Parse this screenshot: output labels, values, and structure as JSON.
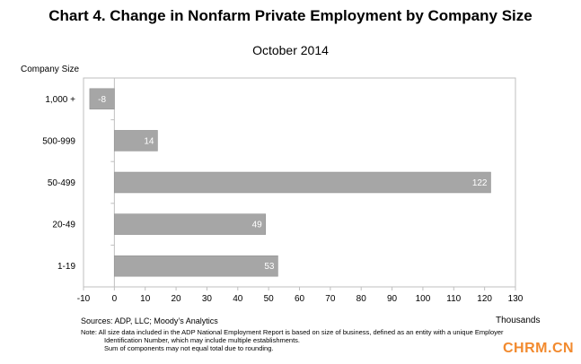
{
  "chart_data": {
    "type": "bar",
    "orientation": "horizontal",
    "title": "Chart 4. Change in Nonfarm Private Employment by Company Size",
    "subtitle": "October 2014",
    "ylabel": "Company Size",
    "xlabel": "Thousands",
    "categories": [
      "1,000 +",
      "500-999",
      "50-499",
      "20-49",
      "1-19"
    ],
    "values": [
      -8,
      14,
      122,
      49,
      53
    ],
    "xlim": [
      -10,
      130
    ],
    "xticks": [
      -10,
      0,
      10,
      20,
      30,
      40,
      50,
      60,
      70,
      80,
      90,
      100,
      110,
      120,
      130
    ],
    "grid": false,
    "bar_color": "#a6a6a6",
    "label_color": "#ffffff",
    "legend": "none"
  },
  "footer": {
    "source": "Sources: ADP, LLC; Moody’s Analytics",
    "note_line1": "Note:  All size data included in the ADP National Employment Report is based on size of business, defined as an entity with a unique Employer",
    "note_line2": "Identification Number, which may include multiple establishments.",
    "note_line3": "Sum of components may not equal total due to rounding."
  },
  "watermark": "CHRM.CN"
}
